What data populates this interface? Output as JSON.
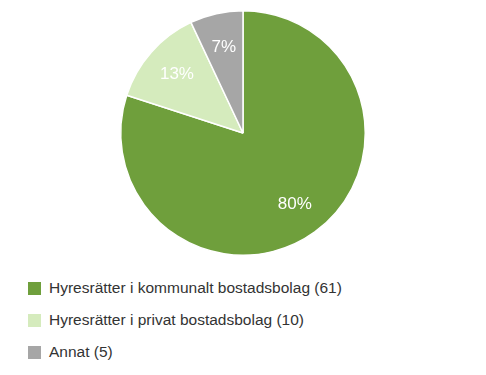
{
  "chart_data": {
    "type": "pie",
    "categories": [
      "Hyresrätter i kommunalt bostadsbolag (61)",
      "Hyresrätter i privat bostadsbolag (10)",
      "Annat (5)"
    ],
    "values": [
      80,
      13,
      7
    ],
    "value_labels": [
      "80%",
      "13%",
      "7%"
    ],
    "colors": [
      "#6f9f3c",
      "#d5ebbd",
      "#a6a6a6"
    ],
    "data_labels": true,
    "legend": "bottom"
  }
}
